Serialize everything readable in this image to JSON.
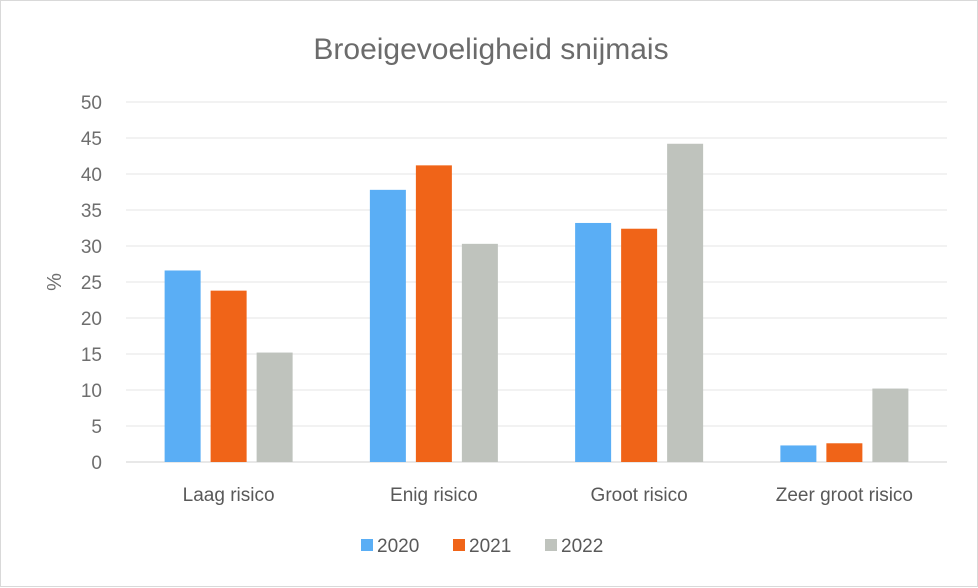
{
  "chart_data": {
    "type": "bar",
    "title": "Broeigevoeligheid snijmais",
    "ylabel": "%",
    "xlabel": "",
    "ylim": [
      0,
      50
    ],
    "yticks": [
      0,
      5,
      10,
      15,
      20,
      25,
      30,
      35,
      40,
      45,
      50
    ],
    "grid": true,
    "legend_position": "bottom",
    "categories": [
      "Laag risico",
      "Enig risico",
      "Groot risico",
      "Zeer groot risico"
    ],
    "series": [
      {
        "name": "2020",
        "color": "#5aaef5",
        "values": [
          26.6,
          37.8,
          33.2,
          2.3
        ]
      },
      {
        "name": "2021",
        "color": "#f06418",
        "values": [
          23.8,
          41.2,
          32.4,
          2.6
        ]
      },
      {
        "name": "2022",
        "color": "#bfc3bd",
        "values": [
          15.2,
          30.3,
          44.2,
          10.2
        ]
      }
    ]
  }
}
